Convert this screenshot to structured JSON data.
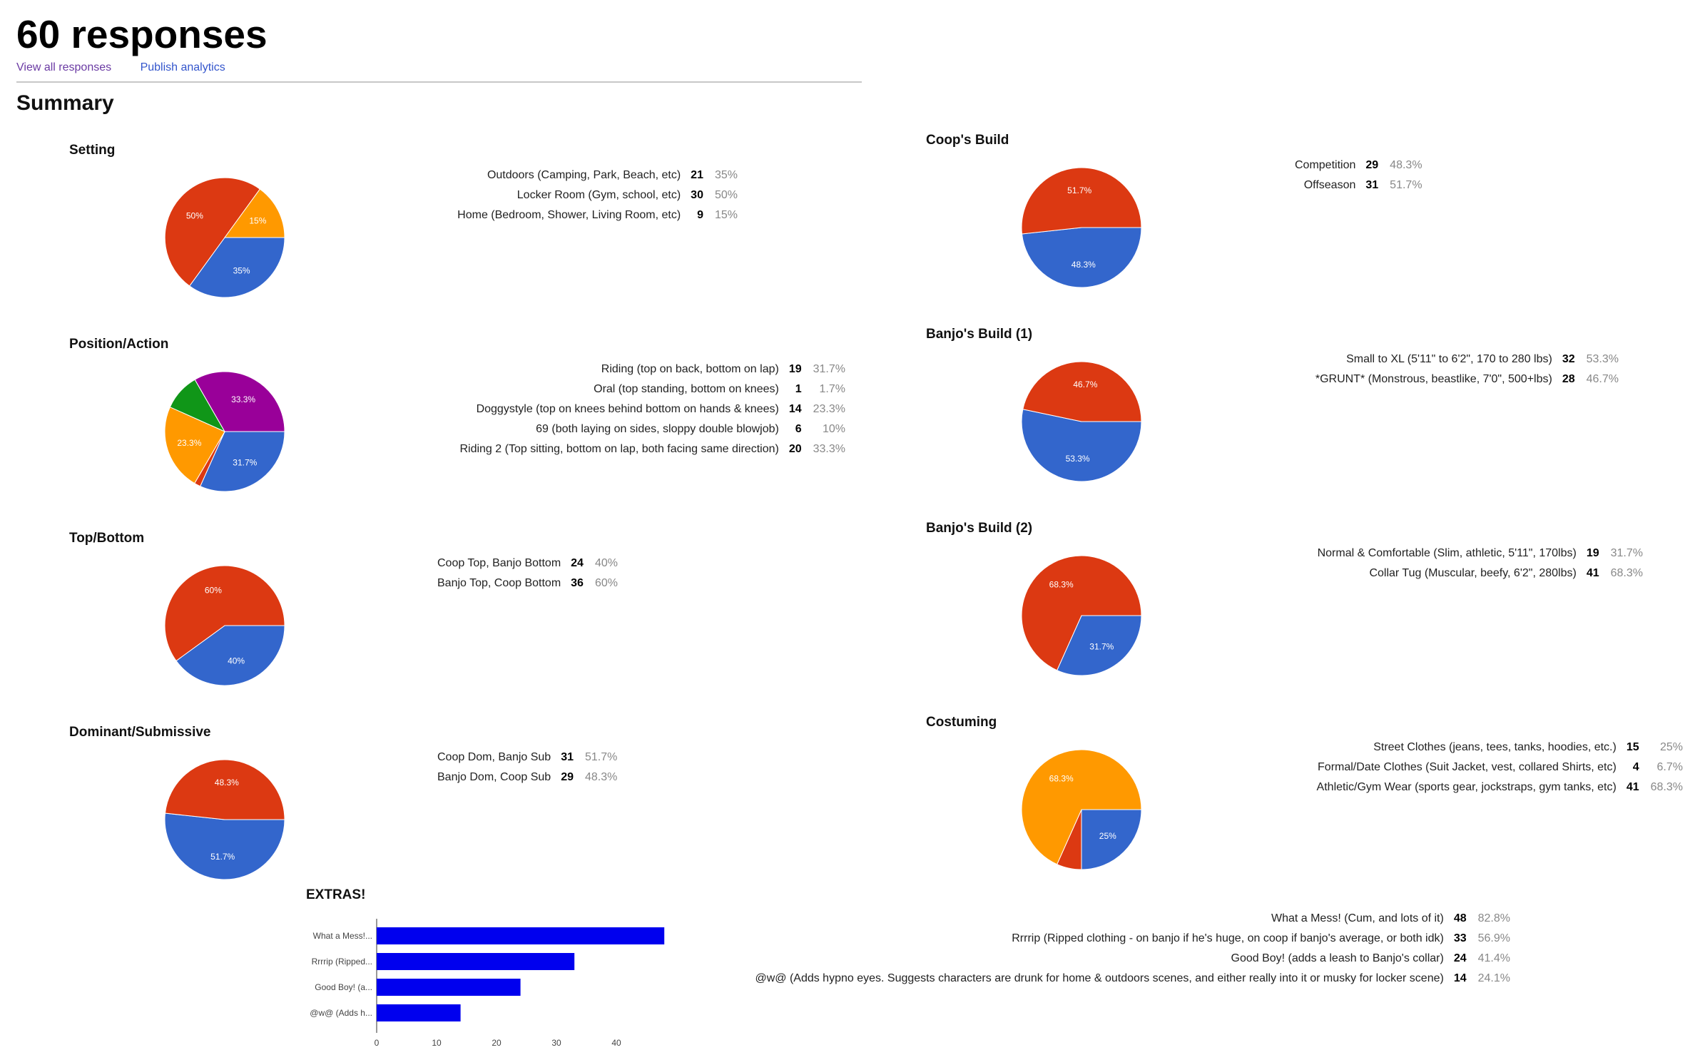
{
  "header": {
    "title": "60 responses",
    "links": {
      "view_all": "View all responses",
      "publish": "Publish analytics"
    },
    "summary": "Summary"
  },
  "colors": {
    "blue": "#3366cc",
    "red": "#dc3912",
    "orange": "#ff9900",
    "green": "#109618",
    "purple": "#990099",
    "bar": "#0000ee",
    "muted": "#888888"
  },
  "questions": {
    "setting": {
      "title": "Setting",
      "items": [
        {
          "label": "Outdoors (Camping, Park, Beach, etc)",
          "count": "21",
          "pct": "35%"
        },
        {
          "label": "Locker Room (Gym, school, etc)",
          "count": "30",
          "pct": "50%"
        },
        {
          "label": "Home (Bedroom, Shower, Living Room, etc)",
          "count": "9",
          "pct": "15%"
        }
      ],
      "slices": [
        {
          "color": "blue",
          "value": 35,
          "text": "35%"
        },
        {
          "color": "red",
          "value": 50,
          "text": "50%"
        },
        {
          "color": "orange",
          "value": 15,
          "text": "15%"
        }
      ]
    },
    "position": {
      "title": "Position/Action",
      "items": [
        {
          "label": "Riding (top on back, bottom on lap)",
          "count": "19",
          "pct": "31.7%"
        },
        {
          "label": "Oral (top standing, bottom on knees)",
          "count": "1",
          "pct": "1.7%"
        },
        {
          "label": "Doggystyle (top on knees behind bottom on hands & knees)",
          "count": "14",
          "pct": "23.3%"
        },
        {
          "label": "69 (both laying on sides, sloppy double blowjob)",
          "count": "6",
          "pct": "10%"
        },
        {
          "label": "Riding 2 (Top sitting, bottom on lap, both facing same direction)",
          "count": "20",
          "pct": "33.3%"
        }
      ],
      "slices": [
        {
          "color": "blue",
          "value": 31.7,
          "text": "31.7%"
        },
        {
          "color": "red",
          "value": 1.7,
          "text": ""
        },
        {
          "color": "orange",
          "value": 23.3,
          "text": "23.3%"
        },
        {
          "color": "green",
          "value": 10,
          "text": ""
        },
        {
          "color": "purple",
          "value": 33.3,
          "text": "33.3%"
        }
      ]
    },
    "topbottom": {
      "title": "Top/Bottom",
      "items": [
        {
          "label": "Coop Top, Banjo Bottom",
          "count": "24",
          "pct": "40%"
        },
        {
          "label": "Banjo Top, Coop Bottom",
          "count": "36",
          "pct": "60%"
        }
      ],
      "slices": [
        {
          "color": "blue",
          "value": 40,
          "text": "40%"
        },
        {
          "color": "red",
          "value": 60,
          "text": "60%"
        }
      ]
    },
    "domsub": {
      "title": "Dominant/Submissive",
      "items": [
        {
          "label": "Coop Dom, Banjo Sub",
          "count": "31",
          "pct": "51.7%"
        },
        {
          "label": "Banjo Dom, Coop Sub",
          "count": "29",
          "pct": "48.3%"
        }
      ],
      "slices": [
        {
          "color": "blue",
          "value": 51.7,
          "text": "51.7%"
        },
        {
          "color": "red",
          "value": 48.3,
          "text": "48.3%"
        }
      ]
    },
    "coopbuild": {
      "title": "Coop's Build",
      "items": [
        {
          "label": "Competition",
          "count": "29",
          "pct": "48.3%"
        },
        {
          "label": "Offseason",
          "count": "31",
          "pct": "51.7%"
        }
      ],
      "slices": [
        {
          "color": "blue",
          "value": 48.3,
          "text": "48.3%"
        },
        {
          "color": "red",
          "value": 51.7,
          "text": "51.7%"
        }
      ]
    },
    "banjobuild1": {
      "title": "Banjo's Build (1)",
      "items": [
        {
          "label": "Small to XL (5'11\" to 6'2\", 170 to 280 lbs)",
          "count": "32",
          "pct": "53.3%"
        },
        {
          "label": "*GRUNT* (Monstrous, beastlike, 7'0\", 500+lbs)",
          "count": "28",
          "pct": "46.7%"
        }
      ],
      "slices": [
        {
          "color": "blue",
          "value": 53.3,
          "text": "53.3%"
        },
        {
          "color": "red",
          "value": 46.7,
          "text": "46.7%"
        }
      ]
    },
    "banjobuild2": {
      "title": "Banjo's Build (2)",
      "items": [
        {
          "label": "Normal & Comfortable (Slim, athletic, 5'11\", 170lbs)",
          "count": "19",
          "pct": "31.7%"
        },
        {
          "label": "Collar Tug (Muscular, beefy, 6'2\", 280lbs)",
          "count": "41",
          "pct": "68.3%"
        }
      ],
      "slices": [
        {
          "color": "blue",
          "value": 31.7,
          "text": "31.7%"
        },
        {
          "color": "red",
          "value": 68.3,
          "text": "68.3%"
        }
      ]
    },
    "costuming": {
      "title": "Costuming",
      "items": [
        {
          "label": "Street Clothes (jeans, tees, tanks, hoodies, etc.)",
          "count": "15",
          "pct": "25%"
        },
        {
          "label": "Formal/Date Clothes (Suit Jacket, vest, collared Shirts, etc)",
          "count": "4",
          "pct": "6.7%"
        },
        {
          "label": "Athletic/Gym Wear (sports gear, jockstraps, gym tanks, etc)",
          "count": "41",
          "pct": "68.3%"
        }
      ],
      "slices": [
        {
          "color": "blue",
          "value": 25,
          "text": "25%"
        },
        {
          "color": "red",
          "value": 6.7,
          "text": ""
        },
        {
          "color": "orange",
          "value": 68.3,
          "text": "68.3%"
        }
      ]
    },
    "extras": {
      "title": "EXTRAS!",
      "items": [
        {
          "label": "What a Mess! (Cum, and lots of it)",
          "count": "48",
          "pct": "82.8%"
        },
        {
          "label": "Rrrrip (Ripped clothing - on banjo if he's huge, on coop if banjo's average, or both idk)",
          "count": "33",
          "pct": "56.9%"
        },
        {
          "label": "Good Boy! (adds a leash to Banjo's collar)",
          "count": "24",
          "pct": "41.4%"
        },
        {
          "label": "@w@ (Adds hypno eyes. Suggests characters are drunk for home & outdoors scenes, and either really into it or musky for locker scene)",
          "count": "14",
          "pct": "24.1%"
        }
      ]
    }
  },
  "chart_data": [
    {
      "type": "pie",
      "title": "Setting",
      "categories": [
        "Outdoors (Camping, Park, Beach, etc)",
        "Locker Room (Gym, school, etc)",
        "Home (Bedroom, Shower, Living Room, etc)"
      ],
      "values": [
        21,
        30,
        9
      ]
    },
    {
      "type": "pie",
      "title": "Position/Action",
      "categories": [
        "Riding (top on back, bottom on lap)",
        "Oral (top standing, bottom on knees)",
        "Doggystyle (top on knees behind bottom on hands & knees)",
        "69 (both laying on sides, sloppy double blowjob)",
        "Riding 2 (Top sitting, bottom on lap, both facing same direction)"
      ],
      "values": [
        19,
        1,
        14,
        6,
        20
      ]
    },
    {
      "type": "pie",
      "title": "Top/Bottom",
      "categories": [
        "Coop Top, Banjo Bottom",
        "Banjo Top, Coop Bottom"
      ],
      "values": [
        24,
        36
      ]
    },
    {
      "type": "pie",
      "title": "Dominant/Submissive",
      "categories": [
        "Coop Dom, Banjo Sub",
        "Banjo Dom, Coop Sub"
      ],
      "values": [
        31,
        29
      ]
    },
    {
      "type": "pie",
      "title": "Coop's Build",
      "categories": [
        "Competition",
        "Offseason"
      ],
      "values": [
        29,
        31
      ]
    },
    {
      "type": "pie",
      "title": "Banjo's Build (1)",
      "categories": [
        "Small to XL (5'11\" to 6'2\", 170 to 280 lbs)",
        "*GRUNT* (Monstrous, beastlike, 7'0\", 500+lbs)"
      ],
      "values": [
        32,
        28
      ]
    },
    {
      "type": "pie",
      "title": "Banjo's Build (2)",
      "categories": [
        "Normal & Comfortable (Slim, athletic, 5'11\", 170lbs)",
        "Collar Tug (Muscular, beefy, 6'2\", 280lbs)"
      ],
      "values": [
        19,
        41
      ]
    },
    {
      "type": "pie",
      "title": "Costuming",
      "categories": [
        "Street Clothes (jeans, tees, tanks, hoodies, etc.)",
        "Formal/Date Clothes (Suit Jacket, vest, collared Shirts, etc)",
        "Athletic/Gym Wear (sports gear, jockstraps, gym tanks, etc)"
      ],
      "values": [
        15,
        4,
        41
      ]
    },
    {
      "type": "bar",
      "orientation": "horizontal",
      "title": "EXTRAS!",
      "categories": [
        "What a Mess!...",
        "Rrrrip (Ripped...",
        "Good Boy! (a...",
        "@w@ (Adds h..."
      ],
      "values": [
        48,
        33,
        24,
        14
      ],
      "xlim": [
        0,
        48
      ],
      "xticks": [
        "0",
        "10",
        "20",
        "30",
        "40"
      ]
    }
  ]
}
